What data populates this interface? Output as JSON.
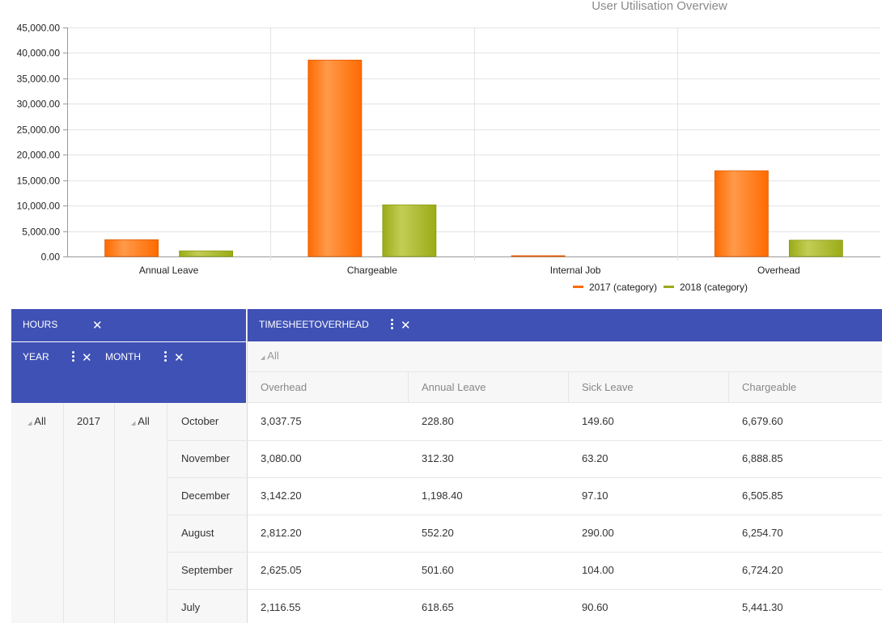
{
  "chart_data": {
    "type": "bar",
    "title": "User Utilisation Overview",
    "categories": [
      "Annual Leave",
      "Chargeable",
      "Internal Job",
      "Overhead"
    ],
    "series": [
      {
        "name": "2017 (category)",
        "color": "#ff6a00",
        "values": [
          3300,
          38600,
          80,
          16850
        ]
      },
      {
        "name": "2018 (category)",
        "color": "#9aab17",
        "values": [
          1100,
          10150,
          0,
          3200
        ]
      }
    ],
    "ylim": [
      0,
      45000
    ],
    "yticks": [
      0,
      5000,
      10000,
      15000,
      20000,
      25000,
      30000,
      35000,
      40000,
      45000
    ],
    "ytick_labels": [
      "0.00",
      "5,000.00",
      "10,000.00",
      "15,000.00",
      "20,000.00",
      "25,000.00",
      "30,000.00",
      "35,000.00",
      "40,000.00",
      "45,000.00"
    ],
    "xlabel": "",
    "ylabel": "",
    "legend_position": "bottom-right"
  },
  "pivot": {
    "measure_field": "HOURS",
    "column_field": "TIMESHEETOVERHEAD",
    "row_fields": [
      "YEAR",
      "MONTH"
    ],
    "column_all_label": "All",
    "columns": [
      "Overhead",
      "Annual Leave",
      "Sick Leave",
      "Chargeable"
    ],
    "row_all_label": "All",
    "year": "2017",
    "month_all_label": "All",
    "rows": [
      {
        "month": "October",
        "values": [
          "3,037.75",
          "228.80",
          "149.60",
          "6,679.60"
        ]
      },
      {
        "month": "November",
        "values": [
          "3,080.00",
          "312.30",
          "63.20",
          "6,888.85"
        ]
      },
      {
        "month": "December",
        "values": [
          "3,142.20",
          "1,198.40",
          "97.10",
          "6,505.85"
        ]
      },
      {
        "month": "August",
        "values": [
          "2,812.20",
          "552.20",
          "290.00",
          "6,254.70"
        ]
      },
      {
        "month": "September",
        "values": [
          "2,625.05",
          "501.60",
          "104.00",
          "6,724.20"
        ]
      },
      {
        "month": "July",
        "values": [
          "2,116.55",
          "618.65",
          "90.60",
          "5,441.30"
        ]
      }
    ]
  },
  "icons": {
    "close": "✕",
    "expand": "◢"
  }
}
